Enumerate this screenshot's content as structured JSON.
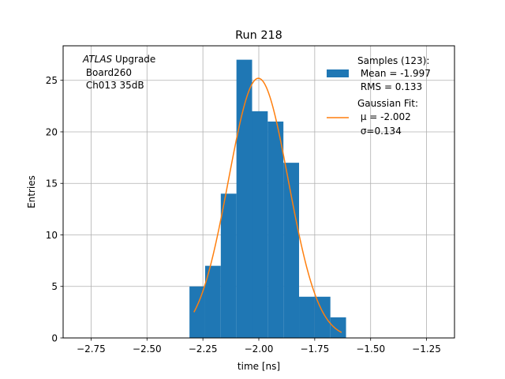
{
  "chart_data": {
    "type": "histogram",
    "title": "Run 218",
    "xlabel": "time [ns]",
    "ylabel": "Entries",
    "xlim": [
      -2.875,
      -1.125
    ],
    "ylim": [
      0,
      28.35
    ],
    "grid": true,
    "x_ticks": [
      -2.75,
      -2.5,
      -2.25,
      -2.0,
      -1.75,
      -1.5,
      -1.25
    ],
    "x_tick_labels": [
      "−2.75",
      "−2.50",
      "−2.25",
      "−2.00",
      "−1.75",
      "−1.50",
      "−1.25"
    ],
    "y_ticks": [
      0,
      5,
      10,
      15,
      20,
      25
    ],
    "y_tick_labels": [
      "0",
      "5",
      "10",
      "15",
      "20",
      "25"
    ],
    "bins": [
      {
        "x0": -2.31,
        "x1": -2.24,
        "count": 5
      },
      {
        "x0": -2.24,
        "x1": -2.17,
        "count": 7
      },
      {
        "x0": -2.17,
        "x1": -2.1,
        "count": 14
      },
      {
        "x0": -2.1,
        "x1": -2.03,
        "count": 27
      },
      {
        "x0": -2.03,
        "x1": -1.96,
        "count": 22
      },
      {
        "x0": -1.96,
        "x1": -1.89,
        "count": 21
      },
      {
        "x0": -1.89,
        "x1": -1.82,
        "count": 17
      },
      {
        "x0": -1.82,
        "x1": -1.75,
        "count": 4
      },
      {
        "x0": -1.75,
        "x1": -1.68,
        "count": 4
      },
      {
        "x0": -1.68,
        "x1": -1.61,
        "count": 2
      }
    ],
    "fit": {
      "type": "gaussian",
      "amplitude": 25.2,
      "mu": -2.002,
      "sigma": 0.134,
      "x_range": [
        -2.29,
        -1.63
      ]
    },
    "annotation": {
      "italic": "ATLAS",
      "rest": " Upgrade",
      "line2": " Board260",
      "line3": " Ch013 35dB"
    },
    "legend": {
      "placement": "top-right",
      "entries": [
        {
          "label_lines": [
            "Samples (123):",
            " Mean = -1.997",
            " RMS = 0.133"
          ]
        },
        {
          "label_lines": [
            "Gaussian Fit:",
            " μ = -2.002",
            " σ=0.134"
          ]
        }
      ]
    },
    "colors": {
      "histogram": "#1f77b4",
      "fit": "#ff7f0e",
      "grid": "#b0b0b0"
    }
  }
}
